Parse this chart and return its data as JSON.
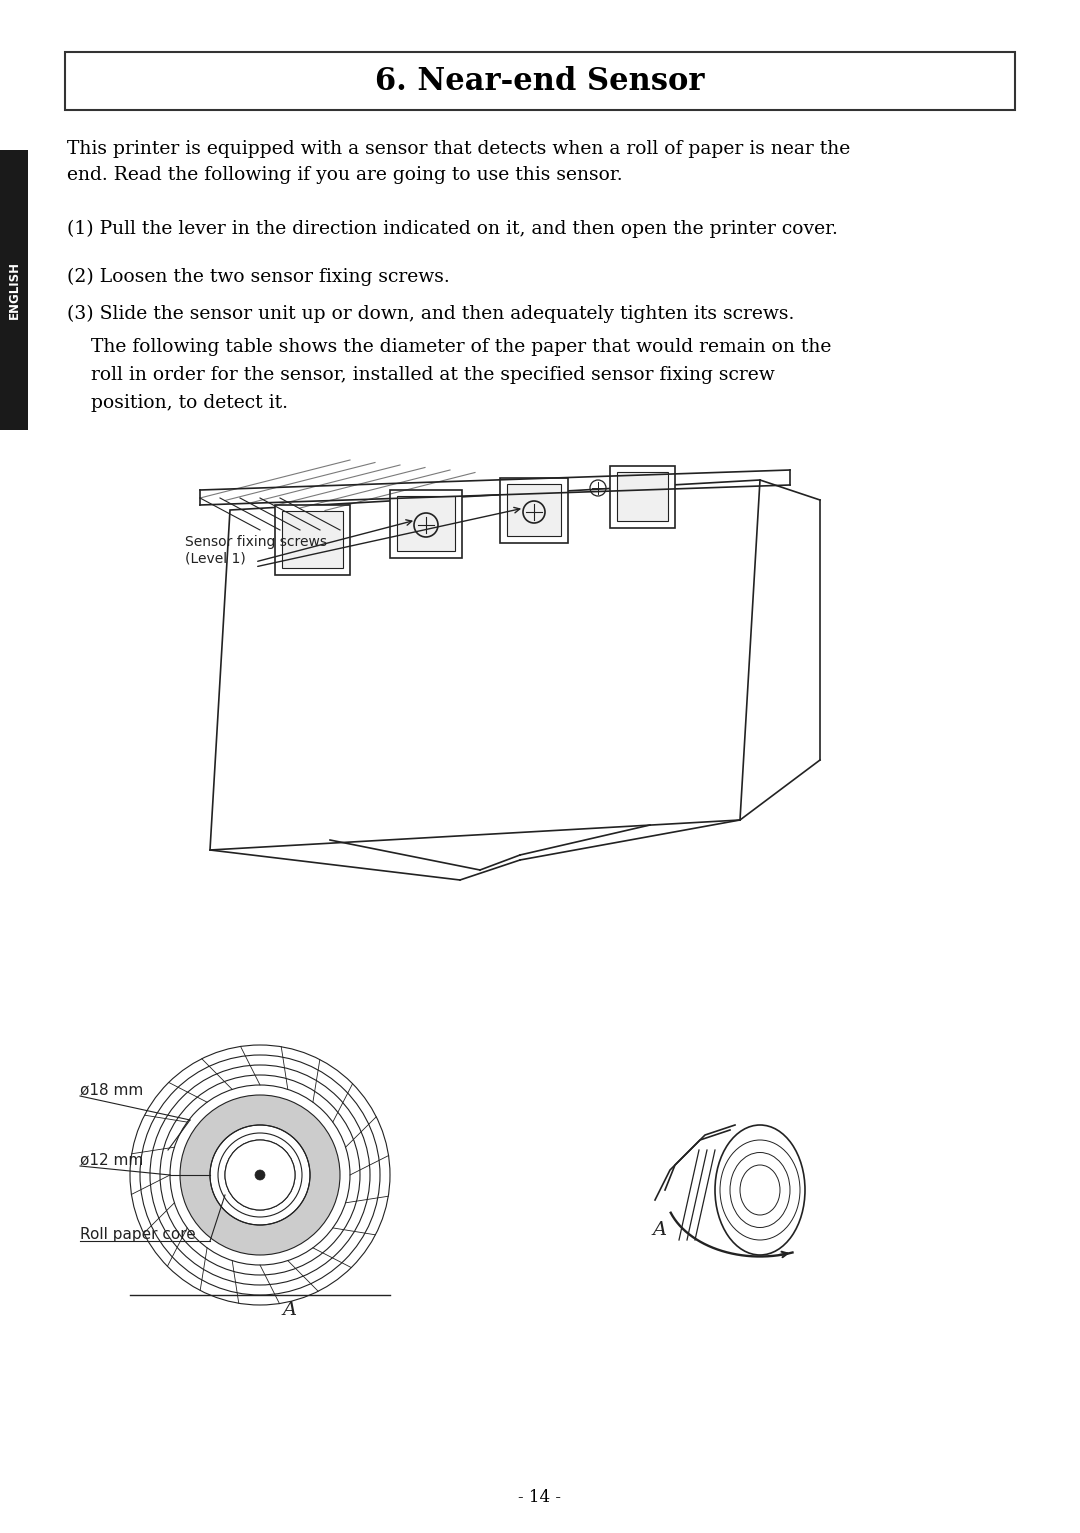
{
  "title": "6. Near-end Sensor",
  "page_number": "- 14 -",
  "bg_color": "#ffffff",
  "text_color": "#000000",
  "sidebar_color": "#1a1a1a",
  "sidebar_text": "ENGLISH",
  "para0": "This printer is equipped with a sensor that detects when a roll of paper is near the\nend. Read the following if you are going to use this sensor.",
  "step1": "(1) Pull the lever in the direction indicated on it, and then open the printer cover.",
  "step2": "(2) Loosen the two sensor fixing screws.",
  "step3_line1": "(3) Slide the sensor unit up or down, and then adequately tighten its screws.",
  "step3_line2": "    The following table shows the diameter of the paper that would remain on the\n    roll in order for the sensor, installed at the specified sensor fixing screw\n    position, to detect it.",
  "label_sensor_fixing": "Sensor fixing screws\n(Level 1)",
  "label_phi18": "ø18 mm",
  "label_phi12": "ø12 mm",
  "label_roll_core": "Roll paper core",
  "label_A1": "A",
  "label_A2": "A"
}
